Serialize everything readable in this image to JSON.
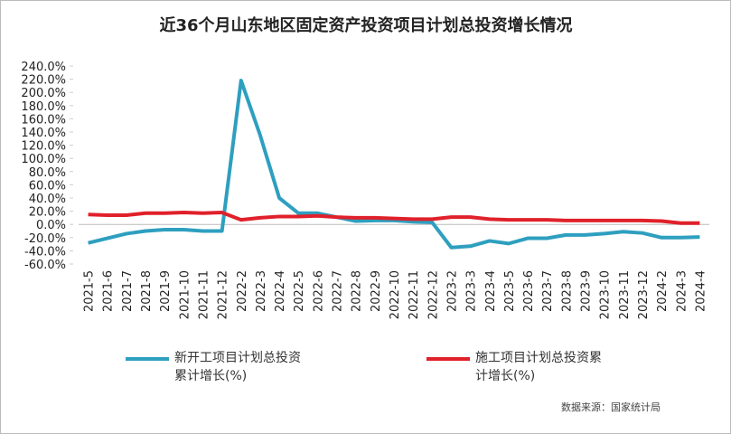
{
  "chart_data": {
    "type": "line",
    "title": "近36个月山东地区固定资产投资项目计划总投资增长情况",
    "categories": [
      "2021-5",
      "2021-6",
      "2021-7",
      "2021-8",
      "2021-9",
      "2021-10",
      "2021-11",
      "2021-12",
      "2022-2",
      "2022-3",
      "2022-4",
      "2022-5",
      "2022-6",
      "2022-7",
      "2022-8",
      "2022-9",
      "2022-10",
      "2022-11",
      "2022-12",
      "2023-2",
      "2023-3",
      "2023-4",
      "2023-5",
      "2023-6",
      "2023-7",
      "2023-8",
      "2023-9",
      "2023-10",
      "2023-11",
      "2023-12",
      "2024-2",
      "2024-3",
      "2024-4"
    ],
    "series": [
      {
        "name": "新开工项目计划总投资累计增长(%)",
        "color": "#2e9fbf",
        "values": [
          -28,
          -21,
          -14,
          -10,
          -8,
          -8,
          -10,
          -10,
          218,
          135,
          40,
          17,
          17,
          11,
          5,
          6,
          6,
          4,
          3,
          -35,
          -33,
          -25,
          -29,
          -21,
          -21,
          -16,
          -16,
          -14,
          -11,
          -13,
          -20,
          -20,
          -19
        ]
      },
      {
        "name": "施工项目计划总投资累计增长(%)",
        "color": "#e0202a",
        "values": [
          15,
          14,
          14,
          17,
          17,
          18,
          17,
          18,
          7,
          10,
          12,
          12,
          13,
          11,
          10,
          10,
          9,
          8,
          8,
          11,
          11,
          8,
          7,
          7,
          7,
          6,
          6,
          6,
          6,
          6,
          5,
          2,
          2
        ]
      }
    ],
    "ylim": [
      -60,
      240
    ],
    "yticks": [
      {
        "value": -60,
        "label": "-60.0%"
      },
      {
        "value": -40,
        "label": "-40.0%"
      },
      {
        "value": -20,
        "label": "-20.0%"
      },
      {
        "value": 0,
        "label": "0.0%"
      },
      {
        "value": 20,
        "label": "20.0%"
      },
      {
        "value": 40,
        "label": "40.0%"
      },
      {
        "value": 60,
        "label": "60.0%"
      },
      {
        "value": 80,
        "label": "80.0%"
      },
      {
        "value": 100,
        "label": "100.0%"
      },
      {
        "value": 120,
        "label": "120.0%"
      },
      {
        "value": 140,
        "label": "140.0%"
      },
      {
        "value": 160,
        "label": "160.0%"
      },
      {
        "value": 180,
        "label": "180.0%"
      },
      {
        "value": 200,
        "label": "200.0%"
      },
      {
        "value": 220,
        "label": "220.0%"
      },
      {
        "value": 240,
        "label": "240.0%"
      }
    ],
    "source": "数据来源：国家统计局"
  }
}
